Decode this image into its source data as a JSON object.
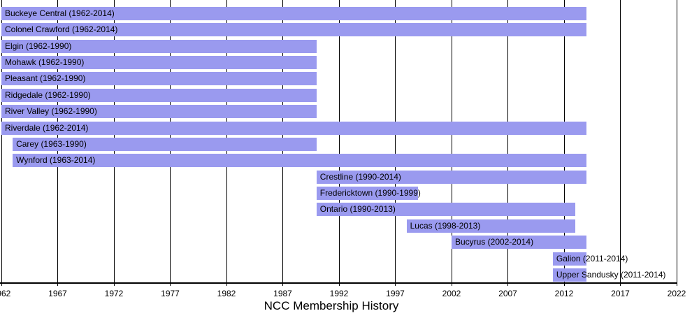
{
  "title": "NCC Membership History",
  "chart_data": {
    "type": "gantt",
    "title": "NCC Membership History",
    "x_axis": {
      "min": 1962,
      "max": 2022,
      "tick_interval": 5,
      "ticks": [
        1962,
        1967,
        1972,
        1977,
        1982,
        1987,
        1992,
        1997,
        2002,
        2007,
        2012,
        2017,
        2022
      ]
    },
    "bars": [
      {
        "name": "Buckeye Central",
        "label": "Buckeye Central (1962-2014)",
        "start": 1962,
        "end": 2014
      },
      {
        "name": "Colonel Crawford",
        "label": "Colonel Crawford (1962-2014)",
        "start": 1962,
        "end": 2014
      },
      {
        "name": "Elgin",
        "label": "Elgin (1962-1990)",
        "start": 1962,
        "end": 1990
      },
      {
        "name": "Mohawk",
        "label": "Mohawk (1962-1990)",
        "start": 1962,
        "end": 1990
      },
      {
        "name": "Pleasant",
        "label": "Pleasant (1962-1990)",
        "start": 1962,
        "end": 1990
      },
      {
        "name": "Ridgedale",
        "label": "Ridgedale (1962-1990)",
        "start": 1962,
        "end": 1990
      },
      {
        "name": "River Valley",
        "label": "River Valley (1962-1990)",
        "start": 1962,
        "end": 1990
      },
      {
        "name": "Riverdale",
        "label": "Riverdale (1962-2014)",
        "start": 1962,
        "end": 2014
      },
      {
        "name": "Carey",
        "label": "Carey (1963-1990)",
        "start": 1963,
        "end": 1990
      },
      {
        "name": "Wynford",
        "label": "Wynford (1963-2014)",
        "start": 1963,
        "end": 2014
      },
      {
        "name": "Crestline",
        "label": "Crestline (1990-2014)",
        "start": 1990,
        "end": 2014
      },
      {
        "name": "Fredericktown",
        "label": "Fredericktown (1990-1999)",
        "start": 1990,
        "end": 1999
      },
      {
        "name": "Ontario",
        "label": "Ontario (1990-2013)",
        "start": 1990,
        "end": 2013
      },
      {
        "name": "Lucas",
        "label": "Lucas (1998-2013)",
        "start": 1998,
        "end": 2013
      },
      {
        "name": "Bucyrus",
        "label": "Bucyrus (2002-2014)",
        "start": 2002,
        "end": 2014
      },
      {
        "name": "Galion",
        "label": "Galion (2011-2014)",
        "start": 2011,
        "end": 2014
      },
      {
        "name": "Upper Sandusky",
        "label": "Upper Sandusky (2011-2014)",
        "start": 2011,
        "end": 2014
      }
    ],
    "colors": {
      "bar_fill": "#9a9aef",
      "grid_line": "#000000",
      "axis_line": "#000000",
      "text": "#000000",
      "background": "#ffffff"
    }
  }
}
